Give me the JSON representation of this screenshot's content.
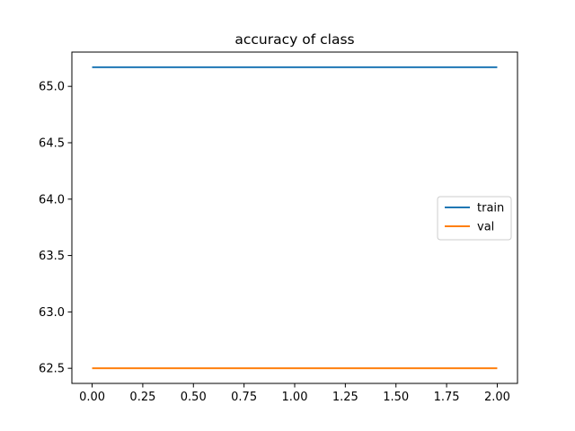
{
  "chart_data": {
    "type": "line",
    "title": "accuracy of class",
    "xlabel": "",
    "ylabel": "",
    "xlim": [
      -0.1,
      2.1
    ],
    "ylim": [
      62.366,
      65.304
    ],
    "xticks": [
      0.0,
      0.25,
      0.5,
      0.75,
      1.0,
      1.25,
      1.5,
      1.75,
      2.0
    ],
    "xtick_labels": [
      "0.00",
      "0.25",
      "0.50",
      "0.75",
      "1.00",
      "1.25",
      "1.50",
      "1.75",
      "2.00"
    ],
    "yticks": [
      62.5,
      63.0,
      63.5,
      64.0,
      64.5,
      65.0
    ],
    "ytick_labels": [
      "62.5",
      "63.0",
      "63.5",
      "64.0",
      "64.5",
      "65.0"
    ],
    "grid": false,
    "legend_position": "center-right",
    "series": [
      {
        "name": "train",
        "color": "#1f77b4",
        "x": [
          0,
          1,
          2
        ],
        "y": [
          65.17,
          65.17,
          65.17
        ]
      },
      {
        "name": "val",
        "color": "#ff7f0e",
        "x": [
          0,
          1,
          2
        ],
        "y": [
          62.5,
          62.5,
          62.5
        ]
      }
    ]
  }
}
